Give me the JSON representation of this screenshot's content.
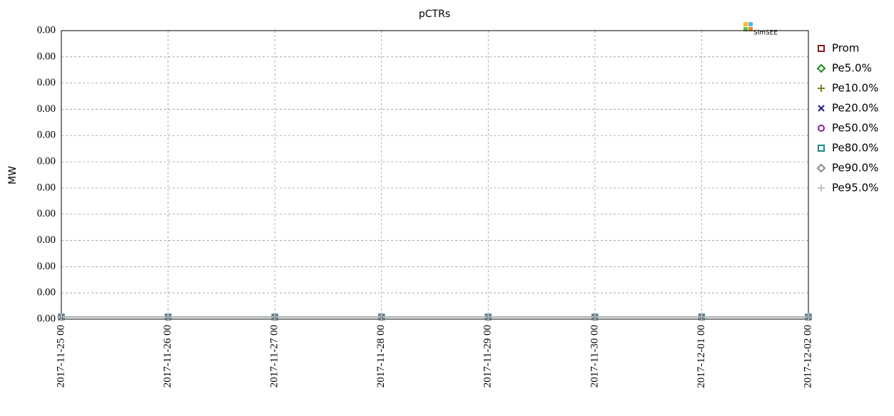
{
  "chart_data": {
    "type": "line",
    "title": "pCTRs",
    "y_label": "MW",
    "logo_text": "SimSEE",
    "x": [
      "2017-11-25 00",
      "2017-11-26 00",
      "2017-11-27 00",
      "2017-11-28 00",
      "2017-11-29 00",
      "2017-11-30 00",
      "2017-12-01 00",
      "2017-12-02 00"
    ],
    "ylim": [
      0,
      0.0011
    ],
    "yticks": [
      {
        "value": 0,
        "label": "0.00"
      },
      {
        "value": 0.0001,
        "label": "0.00"
      },
      {
        "value": 0.0002,
        "label": "0.00"
      },
      {
        "value": 0.0003,
        "label": "0.00"
      },
      {
        "value": 0.0004,
        "label": "0.00"
      },
      {
        "value": 0.0005,
        "label": "0.00"
      },
      {
        "value": 0.0006,
        "label": "0.00"
      },
      {
        "value": 0.0007,
        "label": "0.00"
      },
      {
        "value": 0.0008,
        "label": "0.00"
      },
      {
        "value": 0.0009,
        "label": "0.00"
      },
      {
        "value": 0.001,
        "label": "0.00"
      },
      {
        "value": 0.0011,
        "label": "0.00"
      }
    ],
    "grid": true,
    "legend": "right",
    "series": [
      {
        "name": "Prom",
        "color": "#8b1a1a",
        "marker": "square",
        "values": [
          0,
          0,
          0,
          0,
          0,
          0,
          0,
          0
        ]
      },
      {
        "name": "Pe5.0%",
        "color": "#1f8a1f",
        "marker": "diamond",
        "values": [
          0,
          0,
          0,
          0,
          0,
          0,
          0,
          0
        ]
      },
      {
        "name": "Pe10.0%",
        "color": "#7f7f1a",
        "marker": "plus",
        "values": [
          0,
          0,
          0,
          0,
          0,
          0,
          0,
          0
        ]
      },
      {
        "name": "Pe20.0%",
        "color": "#1a1a7f",
        "marker": "cross",
        "values": [
          0,
          0,
          0,
          0,
          0,
          0,
          0,
          0
        ]
      },
      {
        "name": "Pe50.0%",
        "color": "#8a1a8a",
        "marker": "circle",
        "values": [
          0,
          0,
          0,
          0,
          0,
          0,
          0,
          0
        ]
      },
      {
        "name": "Pe80.0%",
        "color": "#1a8a8a",
        "marker": "square",
        "values": [
          0,
          0,
          0,
          0,
          0,
          0,
          0,
          0
        ]
      },
      {
        "name": "Pe90.0%",
        "color": "#8a8a8a",
        "marker": "diamond",
        "values": [
          0,
          0,
          0,
          0,
          0,
          0,
          0,
          0
        ]
      },
      {
        "name": "Pe95.0%",
        "color": "#c0c0c0",
        "marker": "plus",
        "values": [
          0,
          0,
          0,
          0,
          0,
          0,
          0,
          0
        ]
      }
    ]
  }
}
